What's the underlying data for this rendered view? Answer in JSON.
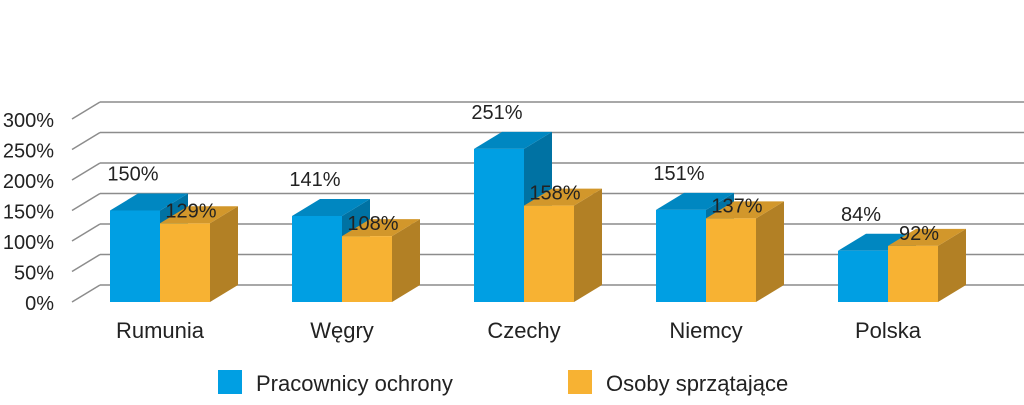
{
  "chart_data": {
    "type": "bar",
    "title": "",
    "xlabel": "",
    "ylabel": "",
    "ylim": [
      0,
      300
    ],
    "y_ticks": [
      "0%",
      "50%",
      "100%",
      "150%",
      "200%",
      "250%",
      "300%"
    ],
    "categories": [
      "Rumunia",
      "Węgry",
      "Czechy",
      "Niemcy",
      "Polska"
    ],
    "series": [
      {
        "name": "Pracownicy ochrony",
        "values": [
          150,
          141,
          251,
          151,
          84
        ],
        "labels": [
          "150%",
          "141%",
          "251%",
          "151%",
          "84%"
        ],
        "color": "#009fe3"
      },
      {
        "name": "Osoby sprzątające",
        "values": [
          129,
          108,
          158,
          137,
          92
        ],
        "labels": [
          "129%",
          "108%",
          "158%",
          "137%",
          "92%"
        ],
        "color": "#f7b233"
      }
    ],
    "grid": true,
    "legend_position": "bottom",
    "style_3d": true
  }
}
